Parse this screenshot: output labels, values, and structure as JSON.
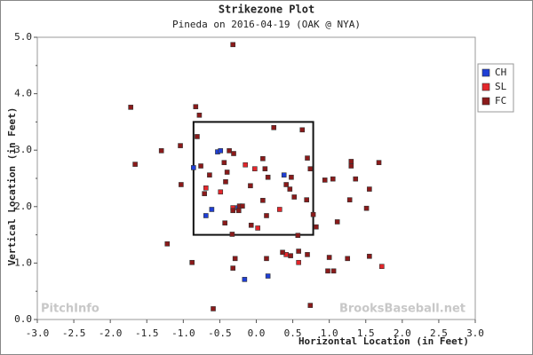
{
  "chart_data": {
    "type": "scatter",
    "title": "Strikezone Plot",
    "subtitle": "Pineda on 2016-04-19 (OAK @ NYA)",
    "x_label": "Horizontal Location (in Feet)",
    "y_label": "Vertical Location (in Feet)",
    "watermarks": [
      "PitchInfo",
      "BrooksBaseball.net"
    ],
    "xlim": [
      -3.0,
      3.0
    ],
    "ylim": [
      0.0,
      5.0
    ],
    "xticks": [
      {
        "value": -3.0,
        "label": "-3.0"
      },
      {
        "value": -2.5,
        "label": "-2.5"
      },
      {
        "value": -2.0,
        "label": "-2.0"
      },
      {
        "value": -1.5,
        "label": "-1.5"
      },
      {
        "value": -1.0,
        "label": "-1.0"
      },
      {
        "value": -0.5,
        "label": "-0.5"
      },
      {
        "value": 0.0,
        "label": "0.0"
      },
      {
        "value": 0.5,
        "label": "0.5"
      },
      {
        "value": 1.0,
        "label": "1.0"
      },
      {
        "value": 1.5,
        "label": "1.5"
      },
      {
        "value": 2.0,
        "label": "2.0"
      },
      {
        "value": 2.5,
        "label": "2.5"
      },
      {
        "value": 3.0,
        "label": "3.0"
      }
    ],
    "yticks": [
      {
        "value": 0.0,
        "label": "0.0"
      },
      0.5,
      {
        "value": 1.0,
        "label": "1.0"
      },
      1.5,
      {
        "value": 2.0,
        "label": "2.0"
      },
      2.5,
      {
        "value": 3.0,
        "label": "3.0"
      },
      3.5,
      {
        "value": 4.0,
        "label": "4.0"
      },
      4.5,
      {
        "value": 5.0,
        "label": "5.0"
      }
    ],
    "strike_zone": {
      "x": [
        -0.86,
        0.78
      ],
      "y": [
        1.5,
        3.5
      ]
    },
    "legend": "right",
    "series": [
      {
        "name": "CH",
        "color": "#1f3fd6",
        "x": [
          -0.86,
          -0.53,
          -0.49,
          -0.69,
          -0.61,
          -0.25,
          0.38,
          -0.16,
          0.16
        ],
        "values": [
          2.69,
          2.97,
          2.99,
          1.84,
          1.95,
          1.98,
          2.56,
          0.71,
          0.77
        ]
      },
      {
        "name": "SL",
        "color": "#e3262b",
        "x": [
          -0.15,
          -0.69,
          -0.02,
          -0.32,
          -0.49,
          0.32,
          0.02,
          0.41,
          1.72,
          0.58
        ],
        "values": [
          2.74,
          2.33,
          2.67,
          1.98,
          2.26,
          1.95,
          1.62,
          1.15,
          0.94,
          1.01
        ]
      },
      {
        "name": "FC",
        "color": "#8b1a1a",
        "x": [
          -0.32,
          -1.72,
          -0.83,
          -0.78,
          0.63,
          0.24,
          -0.81,
          -1.3,
          -1.04,
          -0.37,
          -0.31,
          -0.44,
          0.09,
          -1.66,
          0.7,
          1.3,
          1.3,
          1.68,
          0.74,
          0.12,
          -0.76,
          -0.64,
          -0.71,
          -1.03,
          -0.4,
          -0.42,
          0.16,
          0.48,
          0.94,
          1.05,
          1.36,
          1.28,
          1.11,
          1.55,
          1.51,
          -0.08,
          0.09,
          -0.23,
          -0.19,
          -0.24,
          -0.32,
          0.41,
          0.46,
          0.69,
          0.52,
          0.14,
          0.78,
          0.82,
          -0.43,
          -0.07,
          -0.33,
          -1.22,
          0.57,
          0.58,
          0.36,
          0.47,
          0.7,
          0.14,
          -0.29,
          1.25,
          1.0,
          1.55,
          -0.88,
          -0.32,
          0.98,
          1.06,
          0.74,
          -0.59
        ],
        "values": [
          4.87,
          3.76,
          3.77,
          3.62,
          3.36,
          3.4,
          3.24,
          2.99,
          3.08,
          2.99,
          2.94,
          2.78,
          2.85,
          2.75,
          2.86,
          2.8,
          2.72,
          2.78,
          2.67,
          2.67,
          2.72,
          2.56,
          2.23,
          2.39,
          2.61,
          2.44,
          2.52,
          2.52,
          2.47,
          2.49,
          2.49,
          2.12,
          1.73,
          2.31,
          1.97,
          2.37,
          2.11,
          2.01,
          2.01,
          1.93,
          1.93,
          2.39,
          2.31,
          2.12,
          2.17,
          1.84,
          1.86,
          1.64,
          1.71,
          1.67,
          1.51,
          1.34,
          1.49,
          1.21,
          1.19,
          1.13,
          1.15,
          1.08,
          1.08,
          1.08,
          1.1,
          1.12,
          1.01,
          0.91,
          0.86,
          0.86,
          0.25,
          0.19
        ]
      }
    ]
  }
}
